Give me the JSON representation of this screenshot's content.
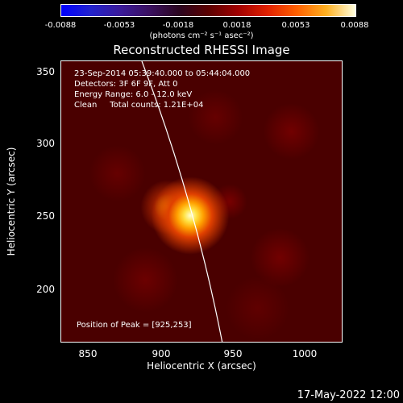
{
  "colorbar": {
    "ticks": [
      "-0.0088",
      "-0.0053",
      "-0.0018",
      "0.0018",
      "0.0053",
      "0.0088"
    ],
    "unit": "(photons cm⁻² s⁻¹ asec⁻²)"
  },
  "plot": {
    "title": "Reconstructed RHESSI Image",
    "info": {
      "time": "23-Sep-2014 05:39:40.000 to 05:44:04.000",
      "detectors": "Detectors: 3F 6F 9F, Att 0",
      "energy": "Energy Range: 6.0 - 12.0 keV",
      "clean": "Clean     Total counts: 1.21E+04"
    },
    "peak": "Position of Peak = [925,253]",
    "xlabel": "Heliocentric X (arcsec)",
    "ylabel": "Heliocentric Y (arcsec)",
    "xticks": [
      "850",
      "900",
      "950",
      "1000"
    ],
    "yticks": [
      "350",
      "300",
      "250",
      "200"
    ]
  },
  "footer": {
    "timestamp": "17-May-2022 12:00"
  },
  "colors": {
    "background": "#000000",
    "limb": "#ffffff",
    "peak": "#ffffc0"
  }
}
